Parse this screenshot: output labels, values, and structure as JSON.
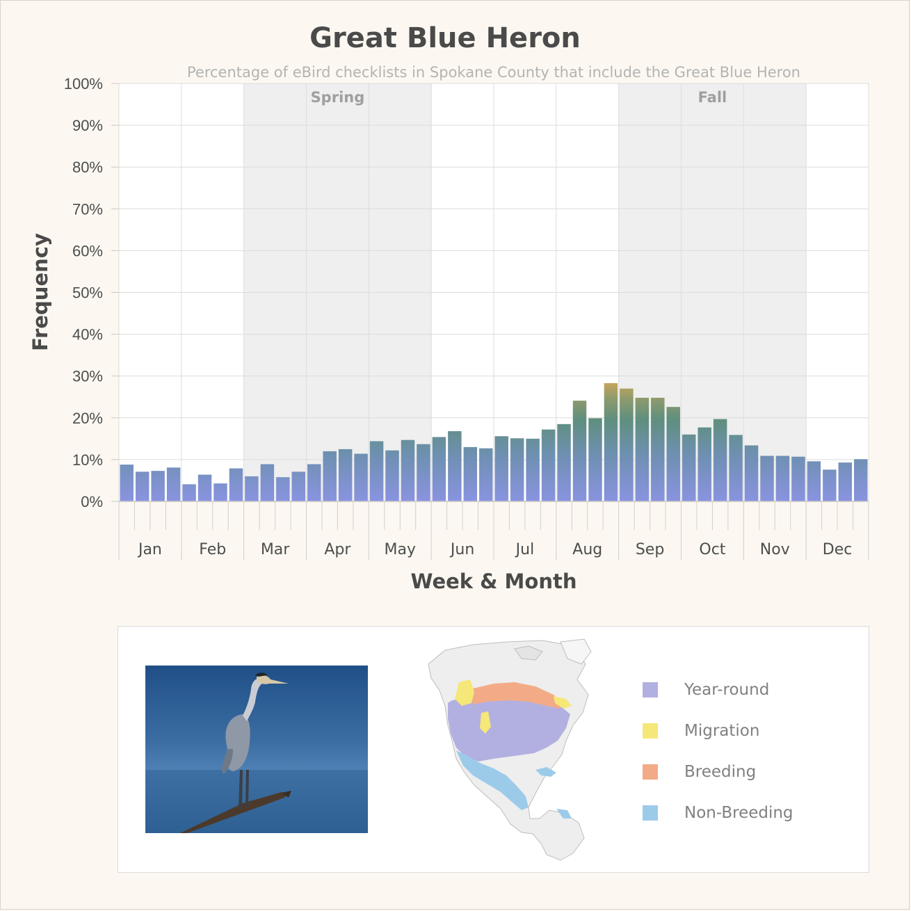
{
  "chart_data": {
    "type": "bar",
    "title": "Great Blue Heron",
    "subtitle": "Percentage of eBird checklists in Spokane County that include the Great Blue Heron",
    "ylabel": "Frequency",
    "xlabel": "Week & Month",
    "ylim": [
      0,
      100
    ],
    "y_ticks": [
      "0%",
      "10%",
      "20%",
      "30%",
      "40%",
      "50%",
      "60%",
      "70%",
      "80%",
      "90%",
      "100%"
    ],
    "months": [
      "Jan",
      "Feb",
      "Mar",
      "Apr",
      "May",
      "Jun",
      "Jul",
      "Aug",
      "Sep",
      "Oct",
      "Nov",
      "Dec"
    ],
    "weeks_per_month": 4,
    "values": [
      8.8,
      7.1,
      7.3,
      8.1,
      4.1,
      6.4,
      4.3,
      7.9,
      6.0,
      8.9,
      5.8,
      7.1,
      8.9,
      12.0,
      12.5,
      11.4,
      14.4,
      12.2,
      14.7,
      13.7,
      15.4,
      16.8,
      13.0,
      12.7,
      15.6,
      15.1,
      15.0,
      17.2,
      18.5,
      24.1,
      19.9,
      28.3,
      27.0,
      24.8,
      24.8,
      22.6,
      16.0,
      17.7,
      19.7,
      15.9,
      13.4,
      10.9,
      10.9,
      10.7,
      9.6,
      7.6,
      9.3,
      10.1
    ],
    "seasons": [
      {
        "label": "Spring",
        "start_month": 2,
        "end_month": 5
      },
      {
        "label": "Fall",
        "start_month": 8,
        "end_month": 11
      }
    ],
    "grid": true,
    "colors": {
      "bar_bottom": "#8a93e0",
      "bar_top": "#5f8f7e",
      "bar_highlight": "#e0aa55",
      "season_shade": "#efefef",
      "grid": "#dcdcdc"
    }
  },
  "legend": {
    "items": [
      {
        "label": "Year-round",
        "color": "#b2b0e0"
      },
      {
        "label": "Migration",
        "color": "#f5e778"
      },
      {
        "label": "Breeding",
        "color": "#f3ab87"
      },
      {
        "label": "Non-Breeding",
        "color": "#9ccbea"
      }
    ]
  }
}
